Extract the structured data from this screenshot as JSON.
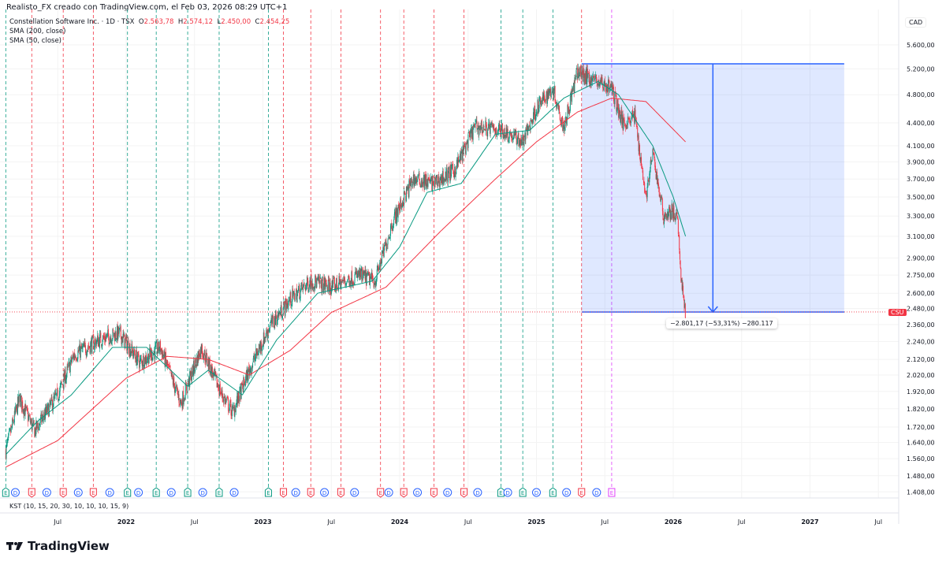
{
  "header": "Realisto_FX creado con TradingView.com, el Feb 03, 2026 08:29 UTC+1",
  "legend": {
    "symbol": "Constellation Software Inc. · 1D · TSX",
    "o_label": "O",
    "o": "2.563,78",
    "h_label": "H",
    "h": "2.574,12",
    "l_label": "L",
    "l": "2.450,00",
    "c_label": "C",
    "c": "2.454,25",
    "sma200": "SMA (200, close)",
    "sma50": "SMA (50, close)"
  },
  "currency": "CAD",
  "ticker_badge": "CSU",
  "measure_label": "−2.801,17 (−53,31%) −280.117",
  "kst_label": "KST (10, 15, 20, 30, 10, 10, 10, 15, 9)",
  "brand": "TradingView",
  "colors": {
    "up": "#089981",
    "down": "#f23645",
    "sma200": "#f23645",
    "sma50": "#089981",
    "measure": "#2962ff",
    "dividend": "#2962ff",
    "future_earnings": "#e040fb"
  },
  "chart_data": {
    "type": "candlestick",
    "y_scale": "log",
    "ylim": [
      1380,
      5800
    ],
    "y_ticks": [
      "5.600,00",
      "5.200,00",
      "4.800,00",
      "4.400,00",
      "4.100,00",
      "3.900,00",
      "3.700,00",
      "3.500,00",
      "3.300,00",
      "3.100,00",
      "2.900,00",
      "2.750,00",
      "2.600,00",
      "2.480,00",
      "2.360,00",
      "2.240,00",
      "2.120,00",
      "2.020,00",
      "1.920,00",
      "1.820,00",
      "1.720,00",
      "1.640,00",
      "1.560,00",
      "1.480,00",
      "1.408,00"
    ],
    "y_tick_values": [
      5600,
      5200,
      4800,
      4400,
      4100,
      3900,
      3700,
      3500,
      3300,
      3100,
      2900,
      2750,
      2600,
      2480,
      2360,
      2240,
      2120,
      2020,
      1920,
      1820,
      1720,
      1640,
      1560,
      1480,
      1408
    ],
    "x_ticks": [
      {
        "t": 2021.5,
        "label": "Jul"
      },
      {
        "t": 2022,
        "label": "2022"
      },
      {
        "t": 2022.5,
        "label": "Jul"
      },
      {
        "t": 2023,
        "label": "2023"
      },
      {
        "t": 2023.5,
        "label": "Jul"
      },
      {
        "t": 2024,
        "label": "2024"
      },
      {
        "t": 2024.5,
        "label": "Jul"
      },
      {
        "t": 2025,
        "label": "2025"
      },
      {
        "t": 2025.5,
        "label": "Jul"
      },
      {
        "t": 2026,
        "label": "2026"
      },
      {
        "t": 2026.5,
        "label": "Jul"
      },
      {
        "t": 2027,
        "label": "2027"
      },
      {
        "t": 2027.5,
        "label": "Jul"
      }
    ],
    "xlim": [
      2021.1,
      2027.65
    ],
    "price_path": [
      [
        2021.12,
        1600
      ],
      [
        2021.22,
        1880
      ],
      [
        2021.33,
        1700
      ],
      [
        2021.5,
        1900
      ],
      [
        2021.62,
        2150
      ],
      [
        2021.8,
        2250
      ],
      [
        2021.95,
        2300
      ],
      [
        2022.1,
        2100
      ],
      [
        2022.25,
        2200
      ],
      [
        2022.4,
        1850
      ],
      [
        2022.55,
        2200
      ],
      [
        2022.7,
        1900
      ],
      [
        2022.78,
        1800
      ],
      [
        2022.9,
        2050
      ],
      [
        2023.05,
        2350
      ],
      [
        2023.2,
        2550
      ],
      [
        2023.35,
        2700
      ],
      [
        2023.5,
        2650
      ],
      [
        2023.7,
        2750
      ],
      [
        2023.82,
        2700
      ],
      [
        2023.95,
        3250
      ],
      [
        2024.1,
        3700
      ],
      [
        2024.25,
        3650
      ],
      [
        2024.4,
        3800
      ],
      [
        2024.55,
        4350
      ],
      [
        2024.75,
        4300
      ],
      [
        2024.9,
        4150
      ],
      [
        2025.0,
        4600
      ],
      [
        2025.12,
        4900
      ],
      [
        2025.2,
        4350
      ],
      [
        2025.3,
        5150
      ],
      [
        2025.45,
        5000
      ],
      [
        2025.55,
        4900
      ],
      [
        2025.63,
        4400
      ],
      [
        2025.72,
        4500
      ],
      [
        2025.8,
        3500
      ],
      [
        2025.85,
        4000
      ],
      [
        2025.93,
        3300
      ],
      [
        2026.0,
        3350
      ],
      [
        2026.03,
        3250
      ],
      [
        2026.06,
        2700
      ],
      [
        2026.09,
        2454
      ]
    ],
    "sma200_path": [
      [
        2021.12,
        1520
      ],
      [
        2021.5,
        1650
      ],
      [
        2022.0,
        2000
      ],
      [
        2022.3,
        2140
      ],
      [
        2022.6,
        2120
      ],
      [
        2022.9,
        2020
      ],
      [
        2023.2,
        2180
      ],
      [
        2023.5,
        2450
      ],
      [
        2023.9,
        2650
      ],
      [
        2024.3,
        3150
      ],
      [
        2024.7,
        3700
      ],
      [
        2025.0,
        4150
      ],
      [
        2025.3,
        4550
      ],
      [
        2025.55,
        4750
      ],
      [
        2025.8,
        4700
      ],
      [
        2026.09,
        4150
      ]
    ],
    "sma50_path": [
      [
        2021.12,
        1580
      ],
      [
        2021.35,
        1750
      ],
      [
        2021.6,
        1900
      ],
      [
        2021.9,
        2200
      ],
      [
        2022.15,
        2200
      ],
      [
        2022.45,
        1950
      ],
      [
        2022.6,
        2050
      ],
      [
        2022.85,
        1900
      ],
      [
        2023.1,
        2250
      ],
      [
        2023.4,
        2600
      ],
      [
        2023.8,
        2700
      ],
      [
        2024.0,
        3000
      ],
      [
        2024.2,
        3550
      ],
      [
        2024.45,
        3650
      ],
      [
        2024.7,
        4250
      ],
      [
        2024.95,
        4300
      ],
      [
        2025.2,
        4750
      ],
      [
        2025.45,
        5000
      ],
      [
        2025.6,
        4800
      ],
      [
        2025.85,
        4100
      ],
      [
        2026.0,
        3500
      ],
      [
        2026.09,
        3100
      ]
    ],
    "measure": {
      "from_t": 2025.33,
      "to_t": 2027.25,
      "high": 5280,
      "low": 2454
    },
    "events": [
      [
        "E",
        "up",
        2021.12
      ],
      [
        "D",
        "",
        2021.19
      ],
      [
        "E",
        "down",
        2021.31
      ],
      [
        "D",
        "",
        2021.42
      ],
      [
        "E",
        "down",
        2021.54
      ],
      [
        "D",
        "",
        2021.65
      ],
      [
        "E",
        "down",
        2021.76
      ],
      [
        "D",
        "",
        2021.88
      ],
      [
        "E",
        "up",
        2022.01
      ],
      [
        "D",
        "",
        2022.09
      ],
      [
        "E",
        "up",
        2022.22
      ],
      [
        "D",
        "",
        2022.33
      ],
      [
        "E",
        "up",
        2022.45
      ],
      [
        "D",
        "",
        2022.56
      ],
      [
        "E",
        "up",
        2022.68
      ],
      [
        "D",
        "",
        2022.79
      ],
      [
        "E",
        "up",
        2023.04
      ],
      [
        "E",
        "down",
        2023.15
      ],
      [
        "D",
        "",
        2023.24
      ],
      [
        "E",
        "down",
        2023.35
      ],
      [
        "D",
        "",
        2023.45
      ],
      [
        "E",
        "down",
        2023.57
      ],
      [
        "D",
        "",
        2023.67
      ],
      [
        "E",
        "down",
        2023.86
      ],
      [
        "D",
        "",
        2023.92
      ],
      [
        "E",
        "down",
        2024.03
      ],
      [
        "D",
        "",
        2024.13
      ],
      [
        "E",
        "down",
        2024.25
      ],
      [
        "D",
        "",
        2024.35
      ],
      [
        "E",
        "down",
        2024.47
      ],
      [
        "D",
        "",
        2024.57
      ],
      [
        "E",
        "up",
        2024.74
      ],
      [
        "D",
        "",
        2024.79
      ],
      [
        "E",
        "up",
        2024.9
      ],
      [
        "D",
        "",
        2025.0
      ],
      [
        "E",
        "up",
        2025.12
      ],
      [
        "D",
        "",
        2025.22
      ],
      [
        "E",
        "down",
        2025.33
      ],
      [
        "D",
        "",
        2025.44
      ],
      [
        "E",
        "future",
        2025.55
      ]
    ]
  }
}
